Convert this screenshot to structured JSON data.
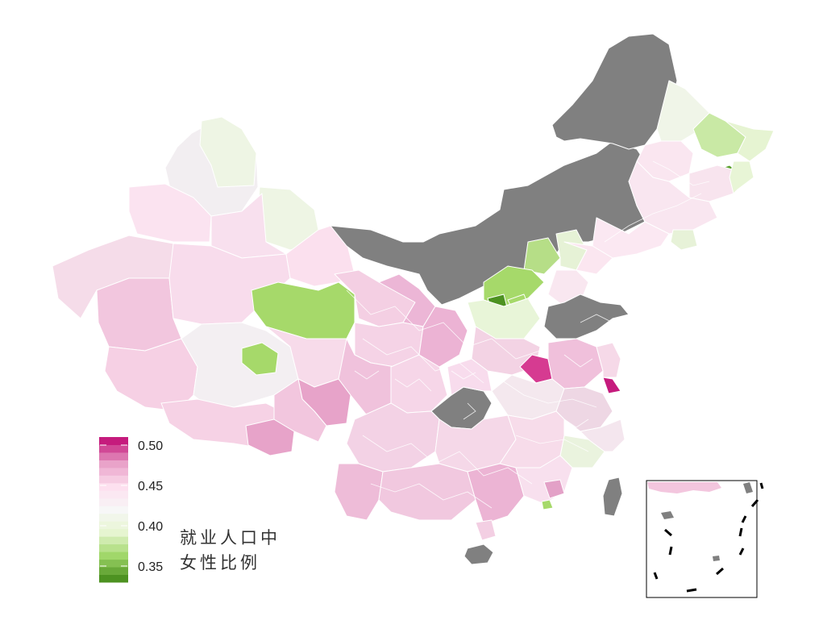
{
  "legend": {
    "title_line1": "就业人口中",
    "title_line2": "女性比例",
    "ticks": [
      {
        "label": "0.50",
        "value": 0.5
      },
      {
        "label": "0.45",
        "value": 0.45
      },
      {
        "label": "0.40",
        "value": 0.4
      },
      {
        "label": "0.35",
        "value": 0.35
      }
    ],
    "range": [
      0.33,
      0.51
    ],
    "steps": 19
  },
  "colors": {
    "high": "#c51b7d",
    "mid_high": "#e9a3c9",
    "light_pink": "#fde0ef",
    "neutral": "#f7f7f7",
    "light_green": "#e6f5d0",
    "mid_low": "#a1d76a",
    "low": "#4d9221",
    "no_data": "#808080",
    "border": "#ffffff"
  }
}
